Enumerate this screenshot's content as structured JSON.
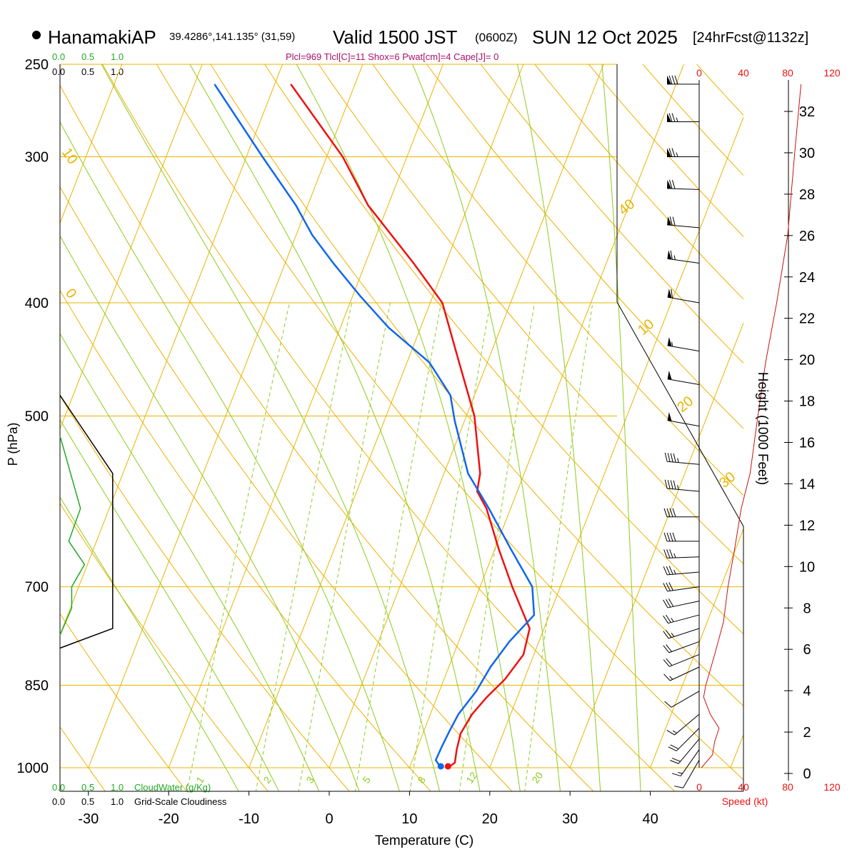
{
  "header": {
    "station": "HanamakiAP",
    "coords": "39.4286°,141.135° (31,59)",
    "valid_prefix": "Valid 1500 JST",
    "valid_utc": "(0600Z)",
    "valid_date": "SUN 12 Oct 2025",
    "forecast": "[24hrFcst@1132z]",
    "indices": "Plcl=969 Tlcl[C]=11 Shox=6 Pwat[cm]=4 Cape[J]= 0"
  },
  "colors": {
    "isotherm": "#e8b400",
    "dry_adiabat": "#f0b000",
    "moist_adiabat": "#8ccc1c",
    "mixing_ratio": "#8ccc1c",
    "temperature": "#ee1111",
    "dewpoint": "#1166ee",
    "cloud": "#22aa22",
    "height": "#cc1111"
  },
  "chart_data": {
    "type": "skewt",
    "xlabel": "Temperature (C)",
    "ylabel": "P (hPa)",
    "x_ticks": [
      -30,
      -20,
      -10,
      0,
      10,
      20,
      30,
      40
    ],
    "pressure_levels": [
      250,
      300,
      400,
      500,
      700,
      850,
      1000
    ],
    "isotherm_labels": [
      "10",
      "0",
      "10",
      "20",
      "30",
      "40"
    ],
    "temperature_profile": [
      {
        "p": 1000,
        "t": 14.8
      },
      {
        "p": 990,
        "t": 15.4
      },
      {
        "p": 965,
        "t": 15.0
      },
      {
        "p": 935,
        "t": 14.7
      },
      {
        "p": 900,
        "t": 15.2
      },
      {
        "p": 870,
        "t": 16.2
      },
      {
        "p": 840,
        "t": 17.6
      },
      {
        "p": 800,
        "t": 18.7
      },
      {
        "p": 760,
        "t": 18.2
      },
      {
        "p": 700,
        "t": 14.0
      },
      {
        "p": 650,
        "t": 10.5
      },
      {
        "p": 600,
        "t": 7.0
      },
      {
        "p": 580,
        "t": 5.0
      },
      {
        "p": 560,
        "t": 4.5
      },
      {
        "p": 500,
        "t": 1.0
      },
      {
        "p": 450,
        "t": -3.5
      },
      {
        "p": 400,
        "t": -8.5
      },
      {
        "p": 370,
        "t": -14.0
      },
      {
        "p": 330,
        "t": -22.5
      },
      {
        "p": 300,
        "t": -28.0
      },
      {
        "p": 260,
        "t": -38.0
      }
    ],
    "dewpoint_profile": [
      {
        "p": 1000,
        "t": 13.9
      },
      {
        "p": 985,
        "t": 12.9
      },
      {
        "p": 960,
        "t": 13.0
      },
      {
        "p": 930,
        "t": 13.2
      },
      {
        "p": 900,
        "t": 13.5
      },
      {
        "p": 860,
        "t": 14.6
      },
      {
        "p": 820,
        "t": 15.2
      },
      {
        "p": 780,
        "t": 16.3
      },
      {
        "p": 740,
        "t": 18.1
      },
      {
        "p": 700,
        "t": 16.5
      },
      {
        "p": 650,
        "t": 12.0
      },
      {
        "p": 600,
        "t": 7.3
      },
      {
        "p": 560,
        "t": 3.0
      },
      {
        "p": 505,
        "t": -1.2
      },
      {
        "p": 480,
        "t": -3.0
      },
      {
        "p": 450,
        "t": -7.2
      },
      {
        "p": 420,
        "t": -14.0
      },
      {
        "p": 395,
        "t": -19.0
      },
      {
        "p": 370,
        "t": -24.0
      },
      {
        "p": 350,
        "t": -28.0
      },
      {
        "p": 330,
        "t": -31.5
      },
      {
        "p": 300,
        "t": -38.0
      },
      {
        "p": 260,
        "t": -47.5
      }
    ],
    "surface_points": {
      "temperature": 14.8,
      "dewpoint": 13.9
    },
    "mixing_ratio_labels": [
      "1",
      "2",
      "3",
      "5",
      "8",
      "12",
      "20"
    ],
    "cloud_water": {
      "label": "CloudWater (g/Kg)",
      "ticks": [
        "0.0",
        "0.5",
        "1.0"
      ],
      "profile": [
        {
          "p": 520,
          "v": 0.0
        },
        {
          "p": 600,
          "v": 0.35
        },
        {
          "p": 640,
          "v": 0.15
        },
        {
          "p": 670,
          "v": 0.42
        },
        {
          "p": 700,
          "v": 0.2
        },
        {
          "p": 730,
          "v": 0.2
        },
        {
          "p": 770,
          "v": 0.0
        }
      ]
    },
    "cloudiness": {
      "label": "Grid-Scale Cloudiness",
      "ticks": [
        "0.0",
        "0.5",
        "1.0"
      ],
      "profile": [
        {
          "p": 480,
          "v": 0.0
        },
        {
          "p": 560,
          "v": 0.9
        },
        {
          "p": 760,
          "v": 0.9
        },
        {
          "p": 790,
          "v": 0.0
        }
      ]
    },
    "wind_speed_axis": {
      "label": "Speed (kt)",
      "ticks": [
        "0",
        "40",
        "80",
        "120"
      ]
    },
    "height_axis": {
      "label": "Height (1000 Feet)",
      "ticks": [
        0,
        2,
        4,
        6,
        8,
        10,
        12,
        14,
        16,
        18,
        20,
        22,
        24,
        26,
        28,
        30,
        32
      ]
    },
    "winds": [
      {
        "p": 260,
        "dir": 270,
        "spd": 80
      },
      {
        "p": 280,
        "dir": 270,
        "spd": 75
      },
      {
        "p": 300,
        "dir": 270,
        "spd": 75
      },
      {
        "p": 320,
        "dir": 272,
        "spd": 70
      },
      {
        "p": 345,
        "dir": 275,
        "spd": 70
      },
      {
        "p": 370,
        "dir": 278,
        "spd": 65
      },
      {
        "p": 400,
        "dir": 280,
        "spd": 60
      },
      {
        "p": 440,
        "dir": 280,
        "spd": 55
      },
      {
        "p": 470,
        "dir": 280,
        "spd": 50
      },
      {
        "p": 510,
        "dir": 280,
        "spd": 50
      },
      {
        "p": 550,
        "dir": 275,
        "spd": 45
      },
      {
        "p": 580,
        "dir": 275,
        "spd": 45
      },
      {
        "p": 610,
        "dir": 270,
        "spd": 40
      },
      {
        "p": 640,
        "dir": 270,
        "spd": 40
      },
      {
        "p": 660,
        "dir": 268,
        "spd": 35
      },
      {
        "p": 680,
        "dir": 265,
        "spd": 35
      },
      {
        "p": 700,
        "dir": 262,
        "spd": 30
      },
      {
        "p": 720,
        "dir": 258,
        "spd": 30
      },
      {
        "p": 740,
        "dir": 255,
        "spd": 25
      },
      {
        "p": 760,
        "dir": 252,
        "spd": 25
      },
      {
        "p": 780,
        "dir": 250,
        "spd": 20
      },
      {
        "p": 800,
        "dir": 248,
        "spd": 20
      },
      {
        "p": 820,
        "dir": 245,
        "spd": 15
      },
      {
        "p": 860,
        "dir": 240,
        "spd": 10
      },
      {
        "p": 900,
        "dir": 230,
        "spd": 15
      },
      {
        "p": 925,
        "dir": 225,
        "spd": 20
      },
      {
        "p": 945,
        "dir": 220,
        "spd": 20
      },
      {
        "p": 965,
        "dir": 215,
        "spd": 15
      },
      {
        "p": 985,
        "dir": 210,
        "spd": 10
      }
    ],
    "speed_profile": [
      {
        "p": 1000,
        "spd": 2
      },
      {
        "p": 975,
        "spd": 12
      },
      {
        "p": 950,
        "spd": 14
      },
      {
        "p": 925,
        "spd": 18
      },
      {
        "p": 900,
        "spd": 10
      },
      {
        "p": 870,
        "spd": 4
      },
      {
        "p": 850,
        "spd": 6
      },
      {
        "p": 800,
        "spd": 14
      },
      {
        "p": 750,
        "spd": 22
      },
      {
        "p": 700,
        "spd": 26
      },
      {
        "p": 650,
        "spd": 32
      },
      {
        "p": 600,
        "spd": 38
      },
      {
        "p": 560,
        "spd": 46
      },
      {
        "p": 500,
        "spd": 53
      },
      {
        "p": 450,
        "spd": 60
      },
      {
        "p": 400,
        "spd": 70
      },
      {
        "p": 350,
        "spd": 80
      },
      {
        "p": 300,
        "spd": 86
      },
      {
        "p": 260,
        "spd": 92
      }
    ]
  }
}
